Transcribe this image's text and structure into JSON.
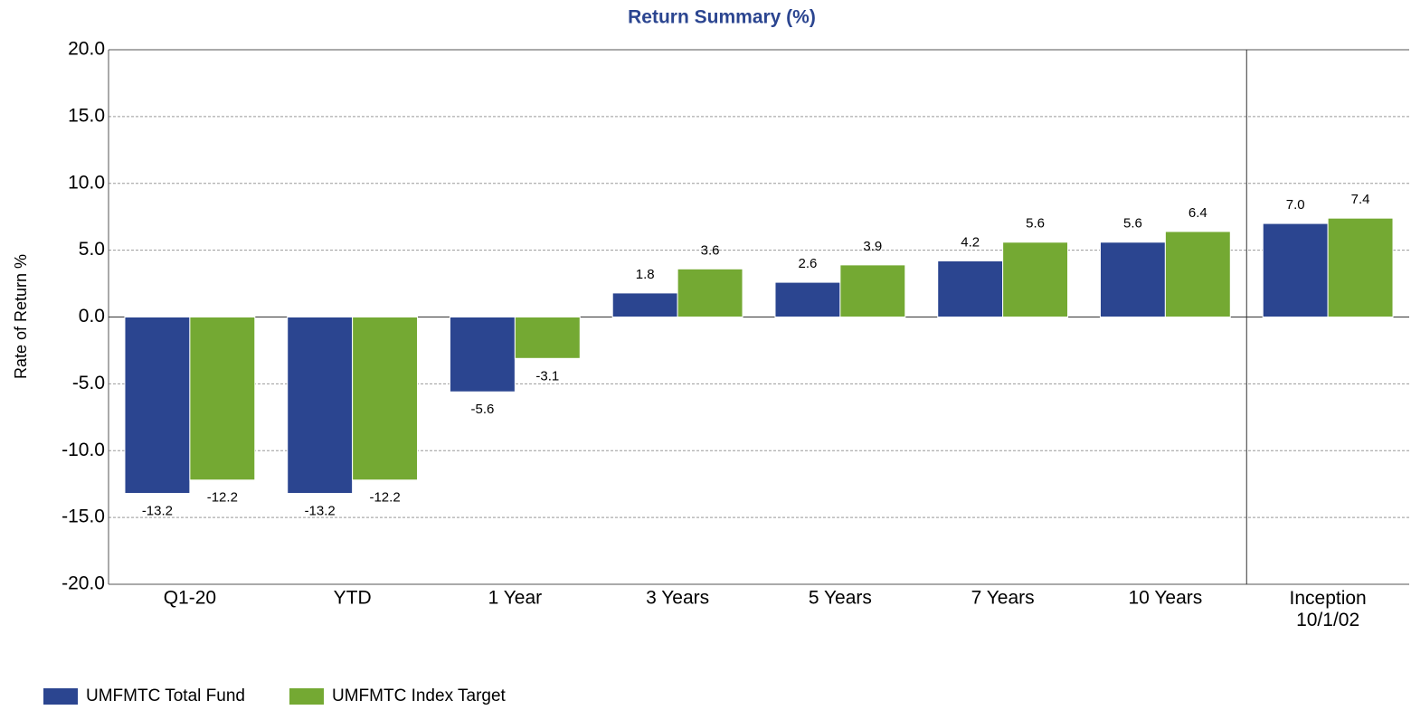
{
  "chart_data": {
    "type": "bar",
    "title": "Return Summary (%)",
    "y_label": "Rate of Return %",
    "categories": [
      "Q1-20",
      "YTD",
      "1 Year",
      "3 Years",
      "5 Years",
      "7 Years",
      "10 Years",
      "Inception\n10/1/02"
    ],
    "series": [
      {
        "name": "UMFMTC Total Fund",
        "color": "#2b4590",
        "values": [
          -13.2,
          -13.2,
          -5.6,
          1.8,
          2.6,
          4.2,
          5.6,
          7.0
        ],
        "value_labels": [
          "-13.2",
          "-13.2",
          "-5.6",
          "1.8",
          "2.6",
          "4.2",
          "5.6",
          "7.0"
        ]
      },
      {
        "name": "UMFMTC Index Target",
        "color": "#74a933",
        "values": [
          -12.2,
          -12.2,
          -3.1,
          3.6,
          3.9,
          5.6,
          6.4,
          7.4
        ]
      }
    ],
    "ylim": [
      -20,
      20
    ],
    "yticks": [
      {
        "value": 20,
        "label": "20.0"
      },
      {
        "value": 15,
        "label": "15.0"
      },
      {
        "value": 10,
        "label": "10.0"
      },
      {
        "value": 5,
        "label": "5.0"
      },
      {
        "value": 0,
        "label": "0.0"
      },
      {
        "value": -5,
        "label": "-5.0"
      },
      {
        "value": -10,
        "label": "-10.0"
      },
      {
        "value": -15,
        "label": "-15.0"
      },
      {
        "value": -20,
        "label": "-20.0"
      }
    ],
    "grid": true
  }
}
